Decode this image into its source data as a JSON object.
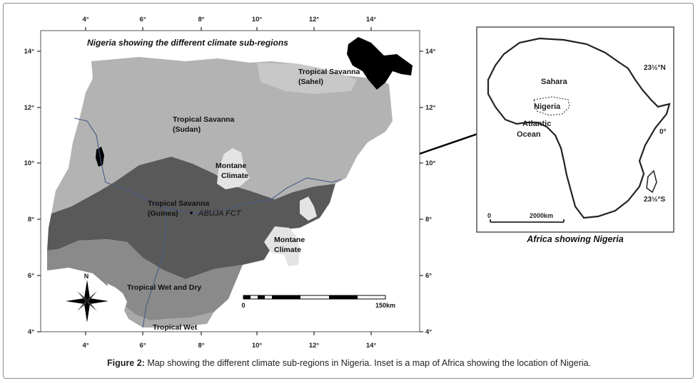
{
  "main_map": {
    "title": "Nigeria showing the different climate sub-regions",
    "top_ticks": [
      "4°",
      "6°",
      "8°",
      "10°",
      "12°",
      "14°"
    ],
    "bottom_ticks": [
      "4°",
      "6°",
      "8°",
      "10°",
      "12°",
      "14°"
    ],
    "left_ticks": [
      "14°",
      "12°",
      "10°",
      "8°",
      "6°",
      "4°"
    ],
    "right_ticks": [
      "14°",
      "12°",
      "10°",
      "8°",
      "6°",
      "4°"
    ],
    "regions": {
      "sahel": [
        "Tropical Savanna",
        "(Sahel)"
      ],
      "sudan": [
        "Tropical Savanna",
        "(Sudan)"
      ],
      "montane_north": [
        "Montane",
        "Climate"
      ],
      "guinea": [
        "Tropical Savanna",
        "(Guinea)"
      ],
      "abuja": "ABUJA FCT",
      "montane_east": [
        "Montane",
        "Climate"
      ],
      "wet_dry": "Tropical  Wet and Dry",
      "wet": "Tropical Wet"
    },
    "compass_label": "N",
    "scale_bar": {
      "start": "0",
      "end": "150km"
    },
    "colors": {
      "sahel_sudan": "#b3b3b3",
      "guinea": "#595959",
      "wet_dry": "#8a8a8a",
      "montane": "#e4e4e4",
      "black_blob": "#000000"
    }
  },
  "inset_map": {
    "labels": {
      "sahara": "Sahara",
      "nigeria": "Nigeria",
      "atlantic": [
        "Atlantic",
        "Ocean"
      ],
      "tropic_n": "23½°N",
      "equator": "0°",
      "tropic_s": "23½°S"
    },
    "scale": {
      "start": "0",
      "end": "2000km"
    },
    "caption": "Africa showing Nigeria"
  },
  "figure_caption": {
    "label": "Figure 2:",
    "text": " Map showing the different climate sub-regions in Nigeria. Inset is a map of Africa showing the location of Nigeria."
  }
}
